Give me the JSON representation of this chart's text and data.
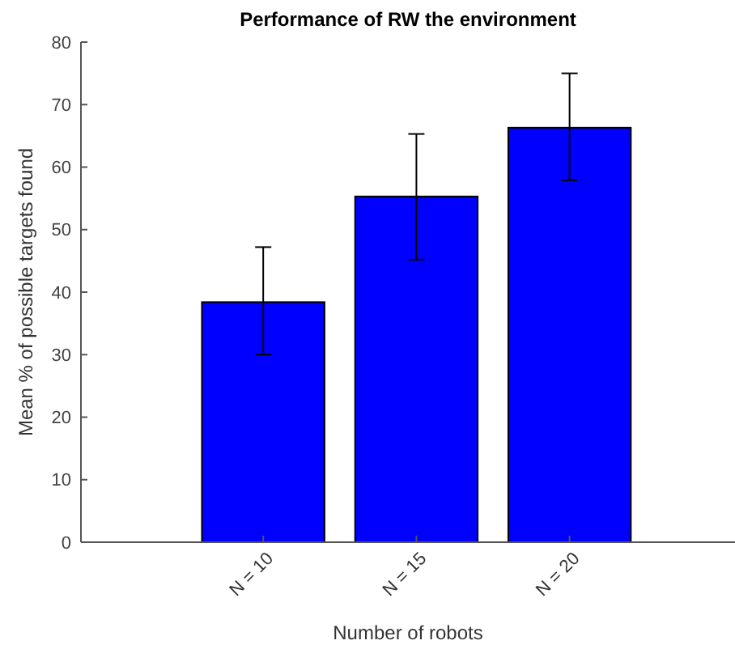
{
  "chart_data": {
    "type": "bar",
    "title": "Performance of RW the environment",
    "xlabel": "Number of robots",
    "ylabel": "Mean % of possible targets found",
    "categories": [
      "N = 10",
      "N = 15",
      "N = 20"
    ],
    "values": [
      38.4,
      55.3,
      66.3
    ],
    "errors": [
      [
        30.0,
        47.2
      ],
      [
        45.2,
        65.3
      ],
      [
        57.9,
        75.0
      ]
    ],
    "color": "#0000ff",
    "ylim": [
      0,
      80
    ],
    "yticks": [
      0,
      10,
      20,
      30,
      40,
      50,
      60,
      70,
      80
    ],
    "grid": false
  }
}
